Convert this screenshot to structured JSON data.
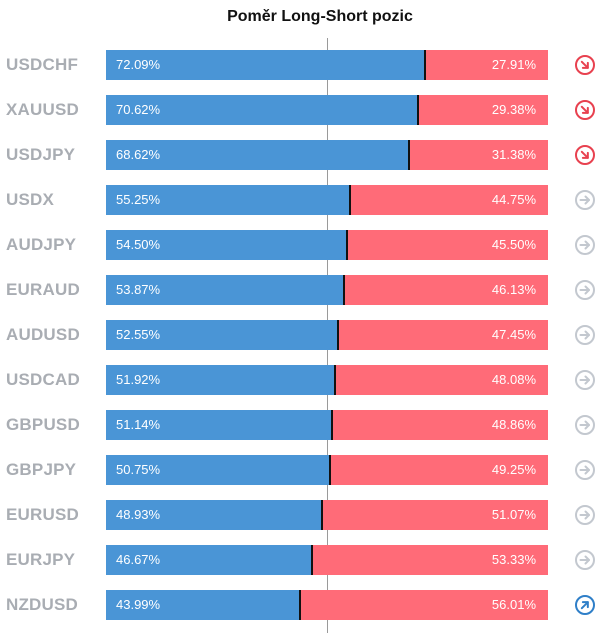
{
  "chart_data": {
    "type": "bar",
    "stacked": true,
    "orientation": "horizontal",
    "title": "Poměr Long-Short pozic",
    "xlim": [
      0,
      100
    ],
    "colors": {
      "long": "#4a95d6",
      "short": "#ff6b78",
      "divider": "#111111"
    },
    "rows": [
      {
        "label": "USDCHF",
        "long": 72.09,
        "short": 27.91,
        "long_label": "72.09%",
        "short_label": "27.91%",
        "trend": "down"
      },
      {
        "label": "XAUUSD",
        "long": 70.62,
        "short": 29.38,
        "long_label": "70.62%",
        "short_label": "29.38%",
        "trend": "down"
      },
      {
        "label": "USDJPY",
        "long": 68.62,
        "short": 31.38,
        "long_label": "68.62%",
        "short_label": "31.38%",
        "trend": "down"
      },
      {
        "label": "USDX",
        "long": 55.25,
        "short": 44.75,
        "long_label": "55.25%",
        "short_label": "44.75%",
        "trend": "neutral"
      },
      {
        "label": "AUDJPY",
        "long": 54.5,
        "short": 45.5,
        "long_label": "54.50%",
        "short_label": "45.50%",
        "trend": "neutral"
      },
      {
        "label": "EURAUD",
        "long": 53.87,
        "short": 46.13,
        "long_label": "53.87%",
        "short_label": "46.13%",
        "trend": "neutral"
      },
      {
        "label": "AUDUSD",
        "long": 52.55,
        "short": 47.45,
        "long_label": "52.55%",
        "short_label": "47.45%",
        "trend": "neutral"
      },
      {
        "label": "USDCAD",
        "long": 51.92,
        "short": 48.08,
        "long_label": "51.92%",
        "short_label": "48.08%",
        "trend": "neutral"
      },
      {
        "label": "GBPUSD",
        "long": 51.14,
        "short": 48.86,
        "long_label": "51.14%",
        "short_label": "48.86%",
        "trend": "neutral"
      },
      {
        "label": "GBPJPY",
        "long": 50.75,
        "short": 49.25,
        "long_label": "50.75%",
        "short_label": "49.25%",
        "trend": "neutral"
      },
      {
        "label": "EURUSD",
        "long": 48.93,
        "short": 51.07,
        "long_label": "48.93%",
        "short_label": "51.07%",
        "trend": "neutral"
      },
      {
        "label": "EURJPY",
        "long": 46.67,
        "short": 53.33,
        "long_label": "46.67%",
        "short_label": "53.33%",
        "trend": "neutral"
      },
      {
        "label": "NZDUSD",
        "long": 43.99,
        "short": 56.01,
        "long_label": "43.99%",
        "short_label": "56.01%",
        "trend": "up"
      }
    ]
  },
  "icons": {
    "down": {
      "name": "trend-down-arrow-icon",
      "color": "#e8414f"
    },
    "neutral": {
      "name": "trend-neutral-arrow-icon",
      "color": "#c3c8cf"
    },
    "up": {
      "name": "trend-up-arrow-icon",
      "color": "#2f7fc8"
    }
  }
}
